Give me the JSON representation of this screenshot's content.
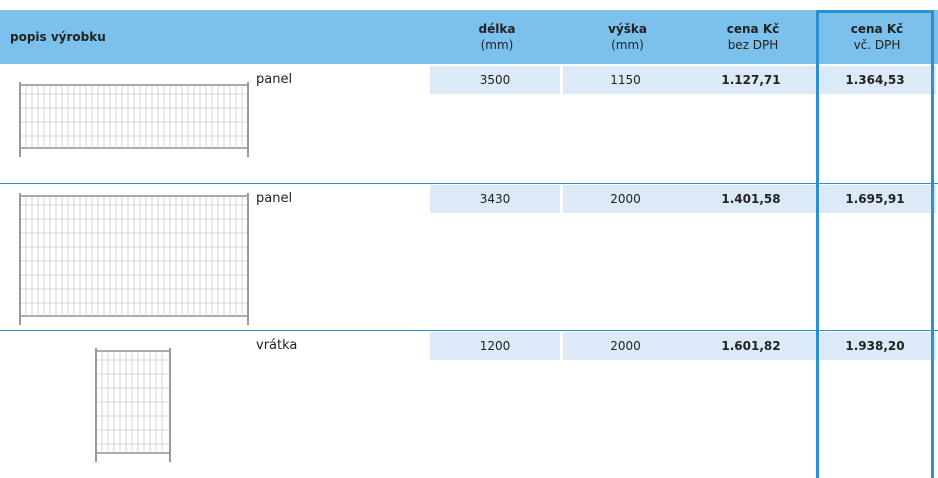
{
  "table": {
    "header": [
      {
        "top": "popis výrobku"
      },
      {
        "top": "délka",
        "bottom": "(mm)"
      },
      {
        "top": "výška",
        "bottom": "(mm)"
      },
      {
        "top": "cena Kč",
        "bottom": "bez DPH"
      },
      {
        "top": "cena Kč",
        "bottom": "vč. DPH"
      }
    ],
    "rows": [
      {
        "name": "panel",
        "length": "3500",
        "height": "1150",
        "price": "1.127,71",
        "price_vat": "1.364,53"
      },
      {
        "name": "panel",
        "length": "3430",
        "height": "2000",
        "price": "1.401,58",
        "price_vat": "1.695,91"
      },
      {
        "name": "vrátka",
        "length": "1200",
        "height": "2000",
        "price": "1.601,82",
        "price_vat": "1.938,20"
      }
    ]
  }
}
